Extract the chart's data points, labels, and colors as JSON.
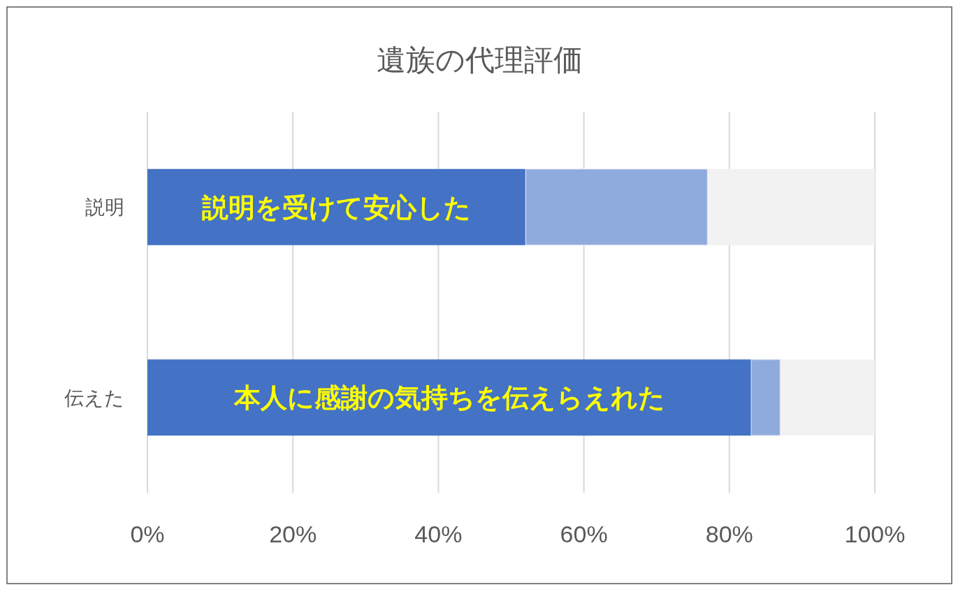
{
  "chart_data": {
    "type": "bar",
    "orientation": "horizontal",
    "stacked": true,
    "title": "遺族の代理評価",
    "categories": [
      "説明",
      "伝えた"
    ],
    "series": [
      {
        "color": "#4472c4",
        "values": [
          52,
          83
        ]
      },
      {
        "color": "#8faadc",
        "values": [
          25,
          4
        ]
      },
      {
        "color": "#f2f2f2",
        "values": [
          23,
          13
        ]
      }
    ],
    "xlim": [
      0,
      100
    ],
    "xticks": [
      {
        "value": 0,
        "label": "0%"
      },
      {
        "value": 20,
        "label": "20%"
      },
      {
        "value": 40,
        "label": "40%"
      },
      {
        "value": 60,
        "label": "60%"
      },
      {
        "value": 80,
        "label": "80%"
      },
      {
        "value": 100,
        "label": "100%"
      }
    ],
    "grid": "x",
    "annotations": [
      "説明を受けて安心した",
      "本人に感謝の気持ちを伝えらえれた"
    ]
  }
}
